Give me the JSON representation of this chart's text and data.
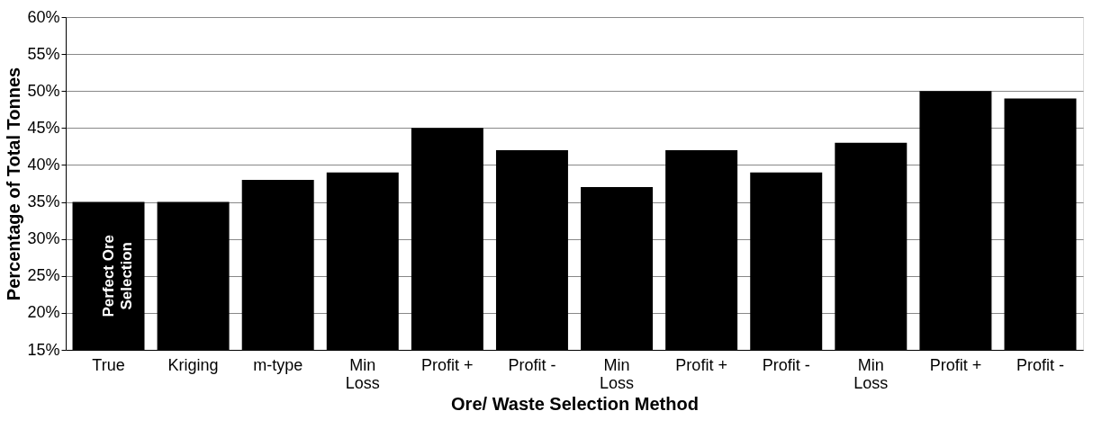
{
  "chart_data": {
    "type": "bar",
    "xlabel": "Ore/ Waste Selection Method",
    "ylabel": "Percentage of Total Tonnes",
    "categories": [
      "True",
      "Kriging",
      "m-type",
      "Min\nLoss",
      "Profit +",
      "Profit -",
      "Min\nLoss",
      "Profit +",
      "Profit -",
      "Min\nLoss",
      "Profit +",
      "Profit -"
    ],
    "values": [
      35,
      35,
      38,
      39,
      45,
      42,
      37,
      42,
      39,
      43,
      50,
      49
    ],
    "color": "#000000",
    "ylim": [
      15,
      60
    ],
    "yticks": [
      {
        "value": 15,
        "label": "15%"
      },
      {
        "value": 20,
        "label": "20%"
      },
      {
        "value": 25,
        "label": "25%"
      },
      {
        "value": 30,
        "label": "30%"
      },
      {
        "value": 35,
        "label": "35%"
      },
      {
        "value": 40,
        "label": "40%"
      },
      {
        "value": 45,
        "label": "45%"
      },
      {
        "value": 50,
        "label": "50%"
      },
      {
        "value": 55,
        "label": "55%"
      },
      {
        "value": 60,
        "label": "60%"
      }
    ],
    "grid": "y",
    "annotations": [
      "Perfect Ore\nSelection"
    ]
  }
}
